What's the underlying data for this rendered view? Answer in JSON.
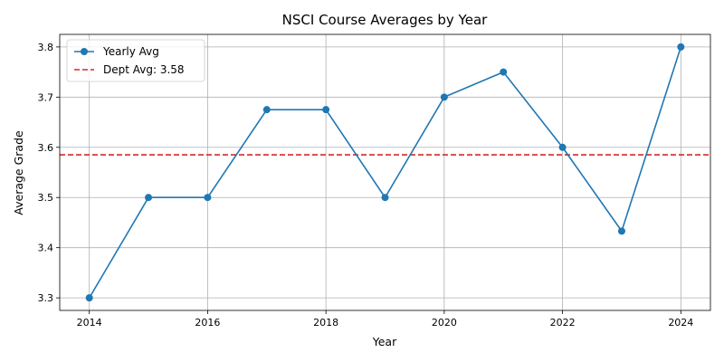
{
  "chart_data": {
    "type": "line",
    "title": "NSCI Course Averages by Year",
    "xlabel": "Year",
    "ylabel": "Average Grade",
    "x": [
      2014,
      2015,
      2016,
      2017,
      2018,
      2019,
      2020,
      2021,
      2022,
      2023,
      2024
    ],
    "series": [
      {
        "name": "Yearly Avg",
        "color": "#1f77b4",
        "values": [
          3.3,
          3.5,
          3.5,
          3.675,
          3.675,
          3.5,
          3.7,
          3.75,
          3.6,
          3.433,
          3.8
        ]
      }
    ],
    "reference_line": {
      "label": "Dept Avg: 3.58",
      "value": 3.585,
      "color": "#d62728",
      "style": "dashed"
    },
    "xlim": [
      2013.5,
      2024.5
    ],
    "ylim": [
      3.275,
      3.825
    ],
    "xticks": [
      2014,
      2016,
      2018,
      2020,
      2022,
      2024
    ],
    "yticks": [
      3.3,
      3.4,
      3.5,
      3.6,
      3.7,
      3.8
    ],
    "ytick_labels": [
      "3.3",
      "3.4",
      "3.5",
      "3.6",
      "3.7",
      "3.8"
    ],
    "grid": true,
    "legend_position": "top-left"
  }
}
